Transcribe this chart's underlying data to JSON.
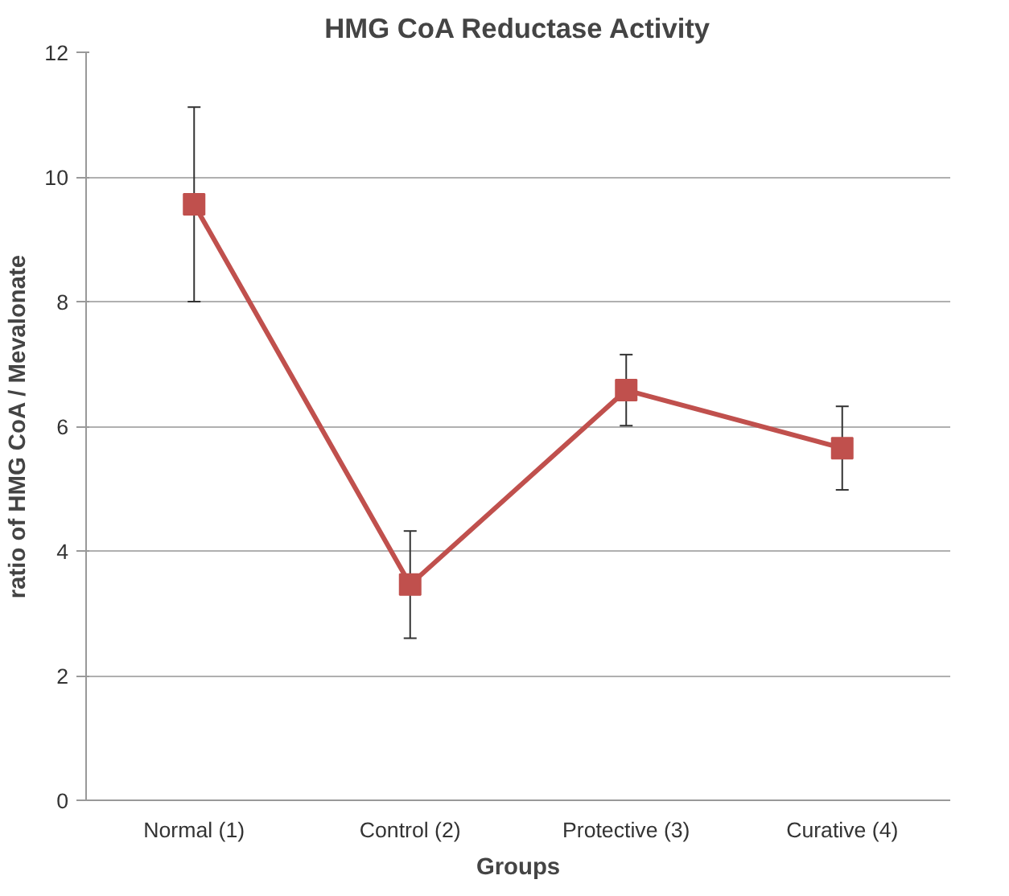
{
  "chart_data": {
    "type": "line",
    "title": "HMG CoA Reductase Activity",
    "xlabel": "Groups",
    "ylabel": "ratio of HMG CoA / Mevalonate",
    "categories": [
      "Normal (1)",
      "Control (2)",
      "Protective (3)",
      "Curative (4)"
    ],
    "series": [
      {
        "color": "#c0504d",
        "values": [
          9.56,
          3.46,
          6.58,
          5.65
        ],
        "errors": [
          1.56,
          0.86,
          0.57,
          0.67
        ]
      }
    ],
    "ylim": [
      0,
      12
    ],
    "yticks": [
      0,
      2,
      4,
      6,
      8,
      10,
      12
    ],
    "grid": "y",
    "marker": "square",
    "line_style": "solid"
  }
}
